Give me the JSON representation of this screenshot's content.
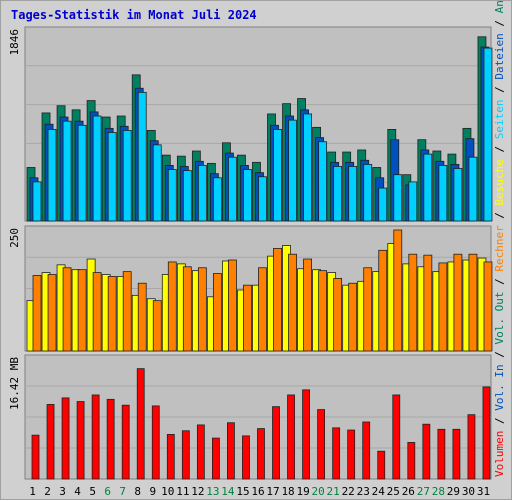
{
  "title": "Tages-Statistik im Monat Juli 2024",
  "colors": {
    "background": "#d0d0d0",
    "plot_bg": "#c0c0c0",
    "anfragen": "#008060",
    "dateien": "#0050c0",
    "seiten": "#00d0ff",
    "besuche": "#ffff00",
    "rechner": "#ff8000",
    "volumen": "#ff0000",
    "weekend": "#008040",
    "weekday": "#000000",
    "grid": "#a8a8a8"
  },
  "chart_data": [
    {
      "type": "bar",
      "panel": "top",
      "ymax_label": "1846",
      "ylim": [
        0,
        1846
      ],
      "categories": [
        "1",
        "2",
        "3",
        "4",
        "5",
        "6",
        "7",
        "8",
        "9",
        "10",
        "11",
        "12",
        "13",
        "14",
        "15",
        "16",
        "17",
        "18",
        "19",
        "20",
        "21",
        "22",
        "23",
        "24",
        "25",
        "26",
        "27",
        "28",
        "29",
        "30",
        "31"
      ],
      "series": [
        {
          "name": "Anfragen",
          "values": [
            520,
            1050,
            1120,
            1080,
            1170,
            1010,
            1020,
            1420,
            880,
            640,
            630,
            680,
            560,
            760,
            640,
            570,
            1040,
            1140,
            1190,
            910,
            670,
            670,
            690,
            520,
            890,
            450,
            790,
            680,
            650,
            900,
            1790
          ]
        },
        {
          "name": "Dateien",
          "values": [
            420,
            940,
            1010,
            970,
            1060,
            900,
            920,
            1290,
            780,
            540,
            530,
            580,
            460,
            660,
            540,
            470,
            930,
            1020,
            1080,
            810,
            570,
            570,
            590,
            420,
            790,
            350,
            690,
            580,
            550,
            800,
            1690
          ]
        },
        {
          "name": "Seiten",
          "values": [
            380,
            890,
            970,
            930,
            1020,
            860,
            880,
            1250,
            740,
            500,
            490,
            540,
            420,
            620,
            500,
            430,
            890,
            980,
            1040,
            770,
            530,
            530,
            550,
            320,
            450,
            380,
            650,
            540,
            510,
            620,
            1680
          ]
        }
      ],
      "right_labels": [
        "Anfragen",
        "Dateien",
        "Seiten"
      ]
    },
    {
      "type": "bar",
      "panel": "middle",
      "ymax_label": "250",
      "ylim": [
        0,
        250
      ],
      "categories": [
        "1",
        "2",
        "3",
        "4",
        "5",
        "6",
        "7",
        "8",
        "9",
        "10",
        "11",
        "12",
        "13",
        "14",
        "15",
        "16",
        "17",
        "18",
        "19",
        "20",
        "21",
        "22",
        "23",
        "24",
        "25",
        "26",
        "27",
        "28",
        "29",
        "30",
        "31"
      ],
      "series": [
        {
          "name": "Besuche",
          "values": [
            104,
            162,
            178,
            168,
            190,
            158,
            154,
            115,
            108,
            158,
            180,
            166,
            112,
            186,
            126,
            136,
            196,
            218,
            170,
            168,
            162,
            136,
            144,
            164,
            222,
            180,
            174,
            164,
            184,
            188,
            192
          ]
        },
        {
          "name": "Rechner",
          "values": [
            156,
            158,
            172,
            168,
            162,
            154,
            164,
            140,
            104,
            184,
            174,
            172,
            160,
            188,
            136,
            172,
            212,
            200,
            190,
            166,
            150,
            140,
            172,
            208,
            250,
            200,
            198,
            182,
            200,
            200,
            184
          ]
        }
      ],
      "right_labels": [
        "Besuche",
        "Rechner"
      ]
    },
    {
      "type": "bar",
      "panel": "bottom",
      "ymax_label": "16.42 MB",
      "ylim": [
        0,
        16.42
      ],
      "categories": [
        "1",
        "2",
        "3",
        "4",
        "5",
        "6",
        "7",
        "8",
        "9",
        "10",
        "11",
        "12",
        "13",
        "14",
        "15",
        "16",
        "17",
        "18",
        "19",
        "20",
        "21",
        "22",
        "23",
        "24",
        "25",
        "26",
        "27",
        "28",
        "29",
        "30",
        "31"
      ],
      "series": [
        {
          "name": "Volumen",
          "values": [
            6.0,
            10.2,
            11.1,
            10.6,
            11.5,
            10.9,
            10.1,
            15.1,
            10.0,
            6.1,
            6.6,
            7.4,
            5.6,
            7.7,
            5.9,
            6.9,
            9.9,
            11.5,
            12.2,
            9.5,
            7.0,
            6.7,
            7.8,
            3.8,
            11.5,
            5.0,
            7.5,
            6.8,
            6.8,
            8.8,
            12.6
          ]
        }
      ],
      "right_labels": [
        "Volumen",
        "Vol. In",
        "Vol. Out",
        "Rechner",
        "Besuche"
      ]
    }
  ],
  "weekend_days": [
    6,
    7,
    13,
    14,
    20,
    21,
    27,
    28
  ]
}
